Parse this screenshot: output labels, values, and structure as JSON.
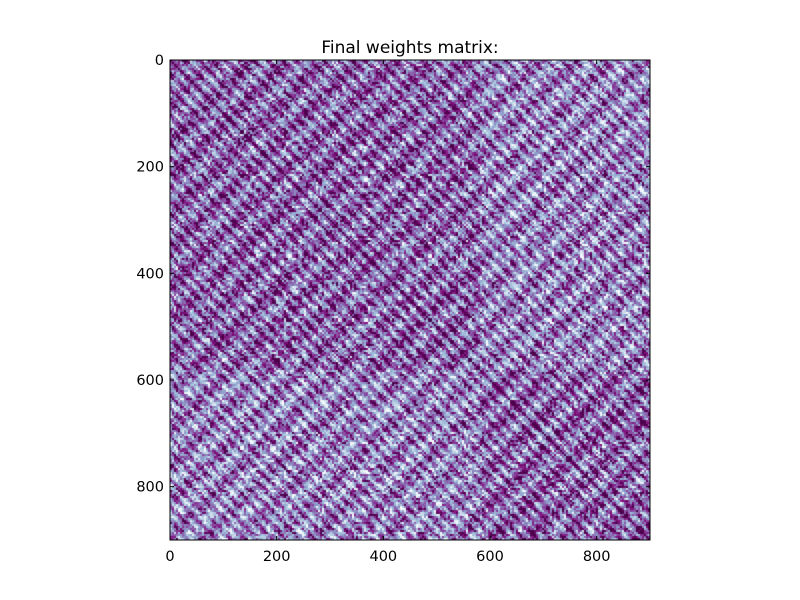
{
  "chart_data": {
    "type": "heatmap",
    "title": "Final weights matrix:",
    "xlabel": "",
    "ylabel": "",
    "rows": 900,
    "cols": 900,
    "xlim": [
      0,
      900
    ],
    "ylim": [
      900,
      0
    ],
    "x_ticks": [
      0,
      200,
      400,
      600,
      800
    ],
    "y_ticks": [
      0,
      200,
      400,
      600,
      800
    ],
    "x_tick_labels": [
      "0",
      "200",
      "400",
      "600",
      "800"
    ],
    "y_tick_labels": [
      "0",
      "200",
      "400",
      "600",
      "800"
    ],
    "colormap": "BuPu",
    "colormap_stops": [
      "#f7fcfd",
      "#e0ecf4",
      "#bfd3e6",
      "#9ebcda",
      "#8c96c6",
      "#8c6bb1",
      "#88419d",
      "#810f7c",
      "#4d004b"
    ],
    "grid": false,
    "legend": "none"
  }
}
